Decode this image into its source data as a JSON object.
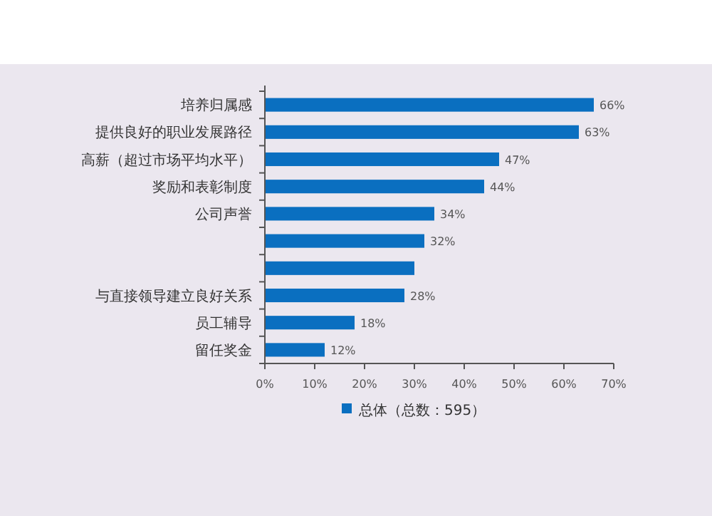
{
  "chart_data": {
    "type": "bar",
    "orientation": "horizontal",
    "categories": [
      "培养归属感",
      "提供良好的职业发展路径",
      "高薪（超过市场平均水平）",
      "奖励和表彰制度",
      "公司声誉",
      null,
      null,
      "与直接领导建立良好关系",
      "员工辅导",
      "留任奖金"
    ],
    "series": [
      {
        "name": "总体（总数：595）",
        "color": "#0a6fc0",
        "values": [
          66,
          63,
          47,
          44,
          34,
          32,
          30,
          28,
          18,
          12
        ],
        "value_labels": [
          "66%",
          "63%",
          "47%",
          "44%",
          "34%",
          "32%",
          null,
          "28%",
          "18%",
          "12%"
        ]
      }
    ],
    "xlim": [
      0,
      70
    ],
    "xticks": [
      {
        "value": 0,
        "label": "0%"
      },
      {
        "value": 10,
        "label": "10%"
      },
      {
        "value": 20,
        "label": "20%"
      },
      {
        "value": 30,
        "label": "30%"
      },
      {
        "value": 40,
        "label": "40%"
      },
      {
        "value": 50,
        "label": "50%"
      },
      {
        "value": 60,
        "label": "60%"
      },
      {
        "value": 70,
        "label": "70%"
      }
    ],
    "legend": "bottom",
    "grid": false
  }
}
